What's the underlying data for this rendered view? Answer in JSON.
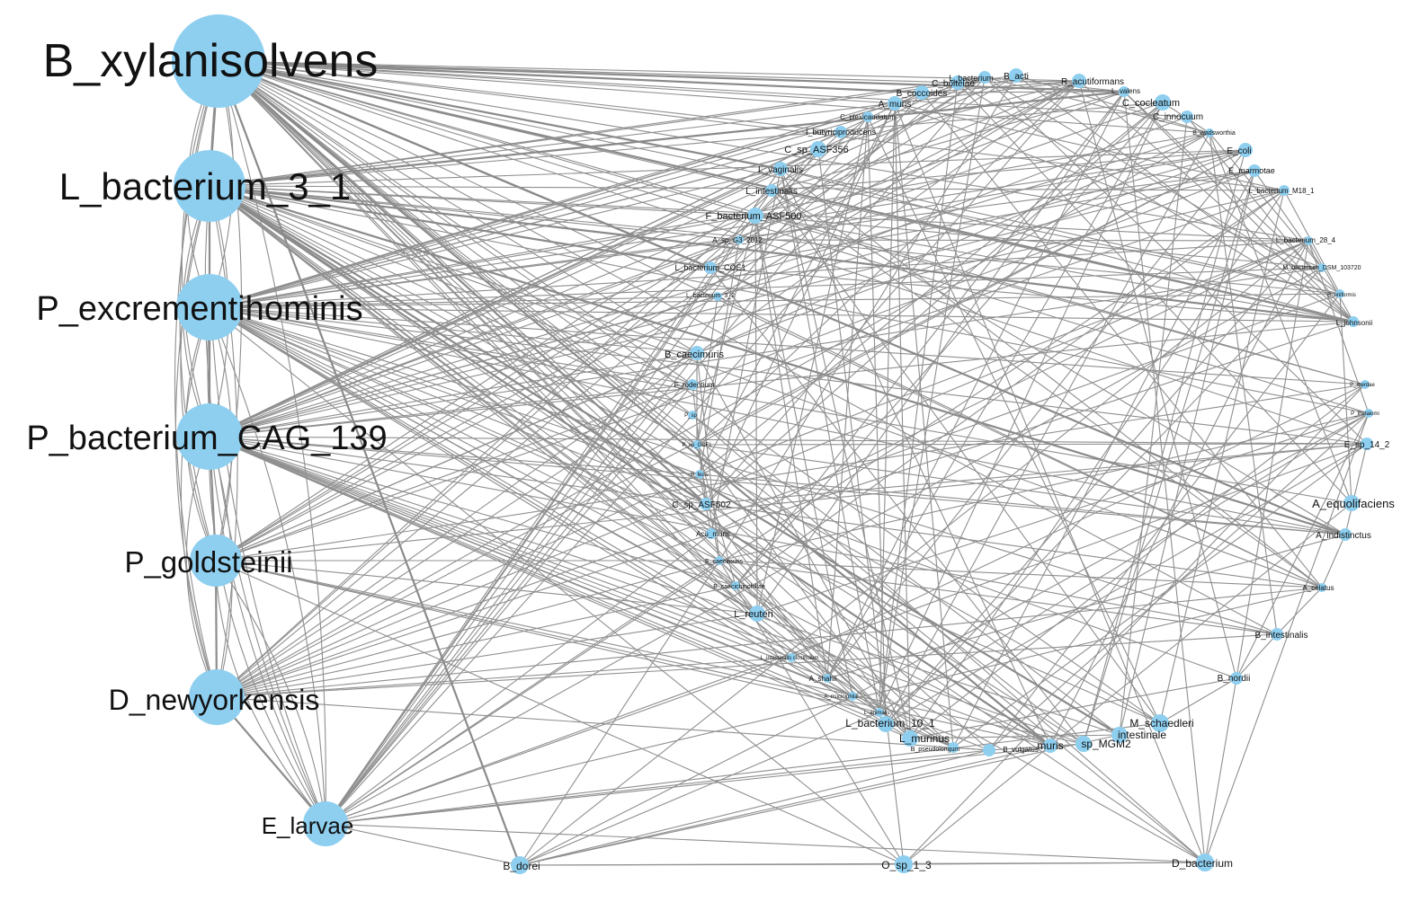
{
  "network": {
    "hubs": [
      {
        "id": "B_xylanisolvens",
        "label": "B_xylanisolvens"
      },
      {
        "id": "L_bacterium_3_1",
        "label": "L_bacterium_3_1"
      },
      {
        "id": "P_excrementihominis",
        "label": "P_excrementihominis"
      },
      {
        "id": "P_bacterium_CAG_139",
        "label": "P_bacterium_CAG_139"
      },
      {
        "id": "P_goldsteinii",
        "label": "P_goldsteinii"
      },
      {
        "id": "D_newyorkensis",
        "label": "D_newyorkensis"
      },
      {
        "id": "E_larvae",
        "label": "E_larvae"
      }
    ],
    "nodes": [
      {
        "id": "B_dorei",
        "label": "B_dorei"
      },
      {
        "id": "O_sp_1_3",
        "label": "O_sp_1_3"
      },
      {
        "id": "D_bacterium",
        "label": "D_bacterium"
      },
      {
        "id": "B_caecimuris",
        "label": "B_caecimuris"
      },
      {
        "id": "F_rodentium",
        "label": "F_rodentium"
      },
      {
        "id": "C_sp_ASF502",
        "label": "C_sp_ASF502"
      },
      {
        "id": "Acu_muris",
        "label": "Acu_muris"
      },
      {
        "id": "E_caecimuris",
        "label": "E_caecimuris"
      },
      {
        "id": "B_caecichinchillae",
        "label": "B_caecichinchillae"
      },
      {
        "id": "L_reuteri",
        "label": "L_reuteri"
      },
      {
        "id": "L_bacterium_COE1",
        "label": "L_bacterium_COE1"
      },
      {
        "id": "L_bacterium_3_2",
        "label": "L_bacterium_3_2"
      },
      {
        "id": "A_sp_G3_2012",
        "label": "A_sp_G3_2012"
      },
      {
        "id": "F_bacterium_ASF500",
        "label": "F_bacterium_ASF500"
      },
      {
        "id": "L_intestinalis",
        "label": "L_intestinalis"
      },
      {
        "id": "L_vaginalis",
        "label": "L_vaginalis"
      },
      {
        "id": "C_sp_ASF356",
        "label": "C_sp_ASF356"
      },
      {
        "id": "I_butyriciproducens",
        "label": "I_butyriciproducens"
      },
      {
        "id": "C_plexicaudatum",
        "label": "C_plexicaudatum"
      },
      {
        "id": "A_muris",
        "label": "A_muris"
      },
      {
        "id": "B_coccoides",
        "label": "B_coccoides"
      },
      {
        "id": "C_boltelae",
        "label": "C_boltelae"
      },
      {
        "id": "L_bacterium",
        "label": "L_bacterium"
      },
      {
        "id": "B_acti",
        "label": "B_acti"
      },
      {
        "id": "R_acutiformans",
        "label": "R_acutiformans"
      },
      {
        "id": "L_valens",
        "label": "L_valens"
      },
      {
        "id": "C_cocleatum",
        "label": "C_cocleatum"
      },
      {
        "id": "C_innocuum",
        "label": "C_innocuum"
      },
      {
        "id": "B_wadsworthia",
        "label": "B_wadsworthia"
      },
      {
        "id": "E_coli",
        "label": "E_coli"
      },
      {
        "id": "E_marmotae",
        "label": "E_marmotae"
      },
      {
        "id": "L_bacterium_M18_1",
        "label": "L_bacterium_M18_1"
      },
      {
        "id": "L_bacterium_28_4",
        "label": "L_bacterium_28_4"
      },
      {
        "id": "M_bacterium_DSM_103720",
        "label": "M_bacterium_DSM_103720"
      },
      {
        "id": "B_uniformis",
        "label": "B_uniformis"
      },
      {
        "id": "L_johnsonii",
        "label": "L_johnsonii"
      },
      {
        "id": "P_merdae",
        "label": "P_merdae"
      },
      {
        "id": "P_thetaiomi",
        "label": "P_thetaiomi"
      },
      {
        "id": "E_sp_14_2",
        "label": "E_sp_14_2"
      },
      {
        "id": "A_equolifaciens",
        "label": "A_equolifaciens"
      },
      {
        "id": "A_indistinctus",
        "label": "A_indistinctus"
      },
      {
        "id": "A_celatus",
        "label": "A_celatus"
      },
      {
        "id": "B_intestinalis",
        "label": "B_intestinalis"
      },
      {
        "id": "B_nordii",
        "label": "B_nordii"
      },
      {
        "id": "M_schaedleri",
        "label": "M_schaedleri"
      },
      {
        "id": "intestinale",
        "label": "intestinale"
      },
      {
        "id": "sp_MGM2",
        "label": "sp_MGM2"
      },
      {
        "id": "L_murinus",
        "label": "L_murinus"
      },
      {
        "id": "L_bacterium_10_1",
        "label": "L_bacterium_10_1"
      },
      {
        "id": "B_vulgatus",
        "label": "B_vulgatus"
      },
      {
        "id": "A_muciniphila",
        "label": "A_muciniphila"
      },
      {
        "id": "A_shahii",
        "label": "A_shahii"
      },
      {
        "id": "L_intestinal_clostridium",
        "label": "L_intestinalis clostridium"
      },
      {
        "id": "B_pseudolongum",
        "label": "B_pseudolongum"
      },
      {
        "id": "L_animalis",
        "label": "L_animalis"
      },
      {
        "id": "muris",
        "label": "muris"
      },
      {
        "id": "P_sp",
        "label": "P_sp"
      },
      {
        "id": "P_sp_GCF1",
        "label": "P_sp_GCF1"
      },
      {
        "id": "B_fecis",
        "label": "B_fecis"
      }
    ]
  }
}
